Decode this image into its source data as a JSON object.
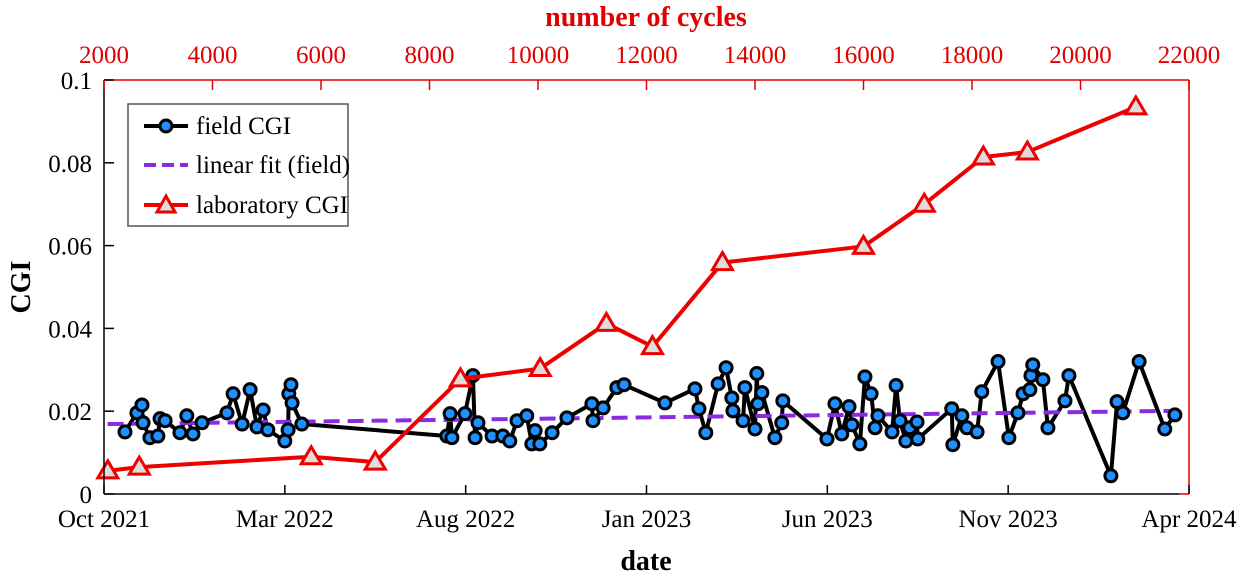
{
  "chart_data": {
    "type": "line",
    "title": "",
    "xlabel": "date",
    "ylabel": "CGI",
    "top_xlabel": "number of cycles",
    "ylim": [
      0,
      0.1
    ],
    "yticks": [
      "0",
      "0.02",
      "0.04",
      "0.06",
      "0.08",
      "0.1"
    ],
    "ytick_values": [
      0,
      0.02,
      0.04,
      0.06,
      0.08,
      0.1
    ],
    "x_unit": "months since Oct 2021",
    "xlim": [
      0,
      30
    ],
    "xticks": [
      "Oct 2021",
      "Mar 2022",
      "Aug 2022",
      "Jan 2023",
      "Jun 2023",
      "Nov 2023",
      "Apr 2024"
    ],
    "xtick_values": [
      0,
      5,
      10,
      15,
      20,
      25,
      30
    ],
    "top_xlim": [
      2000,
      22000
    ],
    "top_xticks": [
      "2000",
      "4000",
      "6000",
      "8000",
      "10000",
      "12000",
      "14000",
      "16000",
      "18000",
      "20000",
      "22000"
    ],
    "top_xtick_values": [
      2000,
      4000,
      6000,
      8000,
      10000,
      12000,
      14000,
      16000,
      18000,
      20000,
      22000
    ],
    "grid": false,
    "legend_position": "top-left",
    "colors": {
      "field": "#000000",
      "field_marker": "#1e90ff",
      "fit": "#8a2be2",
      "lab": "#ee0000"
    },
    "series": [
      {
        "name": "field CGI",
        "axis": "bottom",
        "x": [
          0.58,
          0.91,
          1.05,
          1.08,
          1.27,
          1.49,
          1.55,
          1.69,
          2.1,
          2.29,
          2.46,
          2.71,
          3.4,
          3.57,
          3.82,
          4.04,
          4.23,
          4.4,
          4.53,
          5.0,
          5.09,
          5.11,
          5.17,
          5.2,
          5.47,
          9.48,
          9.57,
          9.62,
          9.98,
          10.2,
          10.26,
          10.34,
          10.73,
          11.03,
          11.22,
          11.42,
          11.69,
          11.83,
          11.92,
          12.05,
          12.39,
          12.8,
          13.49,
          13.52,
          13.8,
          14.18,
          14.38,
          15.51,
          16.34,
          16.45,
          16.64,
          16.98,
          17.2,
          17.36,
          17.39,
          17.67,
          17.72,
          18.0,
          18.05,
          18.08,
          18.19,
          18.55,
          18.74,
          18.77,
          19.99,
          20.21,
          20.4,
          20.6,
          20.68,
          20.9,
          21.04,
          21.21,
          21.32,
          21.4,
          21.79,
          21.9,
          22.01,
          22.17,
          22.28,
          22.48,
          22.5,
          23.44,
          23.47,
          23.72,
          23.86,
          24.14,
          24.27,
          24.72,
          25.02,
          25.27,
          25.41,
          25.6,
          25.63,
          25.68,
          25.96,
          26.1,
          26.57,
          26.68,
          27.84,
          28.01,
          28.17,
          28.62,
          29.33,
          29.61
        ],
        "y": [
          0.015,
          0.0196,
          0.0215,
          0.0172,
          0.0136,
          0.014,
          0.0182,
          0.0177,
          0.0148,
          0.0189,
          0.0145,
          0.0172,
          0.0196,
          0.0242,
          0.0169,
          0.0252,
          0.0162,
          0.0203,
          0.0155,
          0.0128,
          0.0155,
          0.0242,
          0.0264,
          0.022,
          0.0169,
          0.014,
          0.0194,
          0.0136,
          0.0194,
          0.0286,
          0.0136,
          0.0172,
          0.014,
          0.014,
          0.0128,
          0.0177,
          0.0189,
          0.0121,
          0.0153,
          0.0121,
          0.0148,
          0.0184,
          0.0218,
          0.0177,
          0.0208,
          0.0257,
          0.0264,
          0.022,
          0.0254,
          0.0206,
          0.0148,
          0.0266,
          0.0305,
          0.0232,
          0.0201,
          0.0177,
          0.0257,
          0.0157,
          0.0291,
          0.0218,
          0.0245,
          0.0136,
          0.0172,
          0.0225,
          0.0133,
          0.0218,
          0.0145,
          0.0211,
          0.0167,
          0.0121,
          0.0283,
          0.0242,
          0.016,
          0.0189,
          0.015,
          0.0262,
          0.0177,
          0.0128,
          0.016,
          0.0174,
          0.0133,
          0.0206,
          0.0119,
          0.0189,
          0.016,
          0.015,
          0.0247,
          0.032,
          0.0136,
          0.0196,
          0.0242,
          0.0252,
          0.0286,
          0.0312,
          0.0276,
          0.016,
          0.0225,
          0.0286,
          0.0044,
          0.0223,
          0.0196,
          0.032,
          0.0157,
          0.0191
        ]
      },
      {
        "name": "linear fit (field)",
        "axis": "bottom",
        "x": [
          0.1,
          29.8
        ],
        "y": [
          0.0169,
          0.0201
        ]
      },
      {
        "name": "laboratory CGI",
        "axis": "top",
        "x": [
          2070,
          2650,
          5820,
          7000,
          8570,
          10040,
          11260,
          12110,
          13400,
          16000,
          17120,
          18210,
          19020,
          21020
        ],
        "y": [
          0.0056,
          0.0065,
          0.009,
          0.0077,
          0.0278,
          0.0303,
          0.0412,
          0.0356,
          0.0559,
          0.0598,
          0.07,
          0.0814,
          0.0826,
          0.0935
        ]
      }
    ]
  }
}
